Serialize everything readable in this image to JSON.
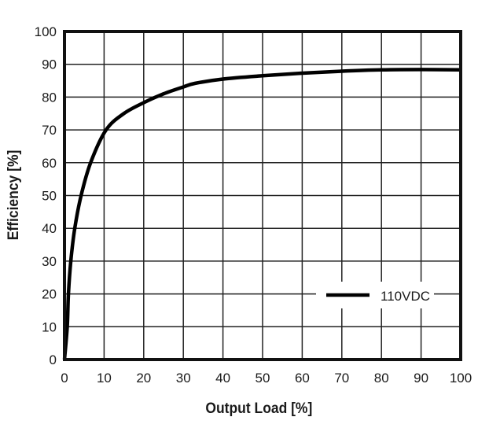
{
  "chart_data": {
    "type": "line",
    "title": "",
    "xlabel": "Output Load [%]",
    "ylabel": "Efficiency [%]",
    "xlim": [
      0,
      100
    ],
    "ylim": [
      0,
      100
    ],
    "xticks": [
      0,
      10,
      20,
      30,
      40,
      50,
      60,
      70,
      80,
      90,
      100
    ],
    "yticks": [
      0,
      10,
      20,
      30,
      40,
      50,
      60,
      70,
      80,
      90,
      100
    ],
    "grid": true,
    "legend_position": "bottom-right",
    "series": [
      {
        "name": "110VDC",
        "color": "#000000",
        "x": [
          0,
          0.7,
          1.0,
          1.6,
          2.6,
          4.2,
          6.6,
          10.5,
          15,
          20,
          25,
          30,
          33,
          40,
          50,
          60,
          70,
          80,
          90,
          100
        ],
        "y": [
          0,
          10,
          20,
          30,
          40,
          50,
          60,
          70,
          75,
          78.3,
          81,
          83.1,
          84.2,
          85.5,
          86.5,
          87.3,
          87.9,
          88.3,
          88.4,
          88.3
        ]
      }
    ]
  }
}
